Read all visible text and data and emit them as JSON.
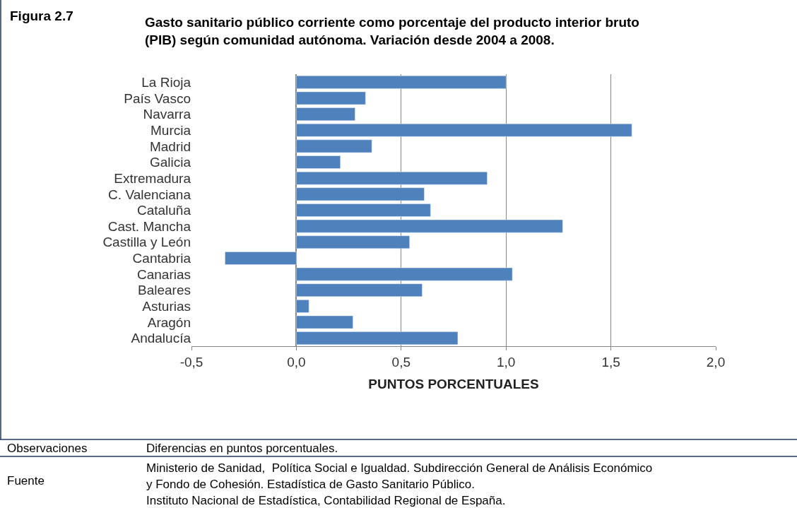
{
  "chart_data": {
    "type": "bar",
    "orientation": "horizontal",
    "title": "Gasto sanitario público corriente como porcentaje del producto interior bruto (PIB) según comunidad autónoma. Variación desde 2004 a 2008.",
    "xlabel": "PUNTOS PORCENTUALES",
    "categories": [
      "La Rioja",
      "País Vasco",
      "Navarra",
      "Murcia",
      "Madrid",
      "Galicia",
      "Extremadura",
      "C. Valenciana",
      "Cataluña",
      "Cast. Mancha",
      "Castilla y León",
      "Cantabria",
      "Canarias",
      "Baleares",
      "Asturias",
      "Aragón",
      "Andalucía"
    ],
    "values": [
      1.0,
      0.33,
      0.28,
      1.6,
      0.36,
      0.21,
      0.91,
      0.61,
      0.64,
      1.27,
      0.54,
      -0.34,
      1.03,
      0.6,
      0.06,
      0.27,
      0.77
    ],
    "color": "#4f81bd",
    "xlim": [
      -0.5,
      2.0
    ],
    "xticks": [
      {
        "value": -0.5,
        "label": "-0,5"
      },
      {
        "value": 0,
        "label": "0,0"
      },
      {
        "value": 0.5,
        "label": "0,5"
      },
      {
        "value": 1.0,
        "label": "1,0"
      },
      {
        "value": 1.5,
        "label": "1,5"
      },
      {
        "value": 2.0,
        "label": "2,0"
      }
    ],
    "grid": "x",
    "annotations": [
      "Figura 2.7",
      "Observaciones",
      "Diferencias en puntos porcentuales.",
      "Fuente",
      "Ministerio de Sanidad,  Política Social e Igualdad. Subdirección General de Análisis Económico",
      "y Fondo de Cohesión. Estadística de Gasto Sanitario Público.",
      "Instituto Nacional de Estadística, Contabilidad Regional de España."
    ]
  }
}
